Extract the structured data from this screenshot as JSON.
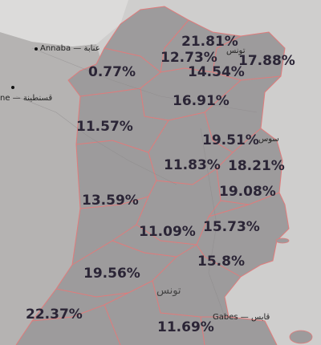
{
  "map": {
    "place_labels": {
      "annaba": "Annaba — عنابة",
      "constantine": "ne — قسنطينة",
      "tunis": "تونس",
      "sousse": "سوس",
      "tounes_center": "تونس",
      "gabes": "Gabes — قابس"
    },
    "regions": [
      {
        "value": "21.81%"
      },
      {
        "value": "12.73%"
      },
      {
        "value": "17.88%"
      },
      {
        "value": "14.54%"
      },
      {
        "value": "0.77%"
      },
      {
        "value": "16.91%"
      },
      {
        "value": "11.57%"
      },
      {
        "value": "19.51%"
      },
      {
        "value": "11.83%"
      },
      {
        "value": "18.21%"
      },
      {
        "value": "19.08%"
      },
      {
        "value": "13.59%"
      },
      {
        "value": "11.09%"
      },
      {
        "value": "15.73%"
      },
      {
        "value": "15.8%"
      },
      {
        "value": "19.56%"
      },
      {
        "value": "22.37%"
      },
      {
        "value": "11.69%"
      }
    ],
    "colors": {
      "land": "#b3b1b1",
      "tunisia_fill": "#9c9a9b",
      "sea": "#c9c8c7",
      "border": "#e07b7b",
      "label": "#2b2536"
    }
  }
}
